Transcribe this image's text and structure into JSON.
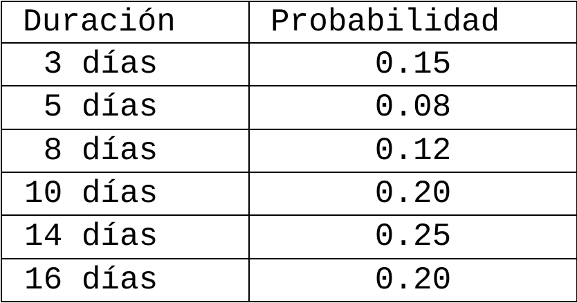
{
  "table": {
    "headers": [
      "Duración",
      "Probabilidad"
    ],
    "rows": [
      {
        "duracion": " 3 días",
        "probabilidad": "0.15"
      },
      {
        "duracion": " 5 días",
        "probabilidad": "0.08"
      },
      {
        "duracion": " 8 días",
        "probabilidad": "0.12"
      },
      {
        "duracion": "10 días",
        "probabilidad": "0.20"
      },
      {
        "duracion": "14 días",
        "probabilidad": "0.25"
      },
      {
        "duracion": "16 días",
        "probabilidad": "0.20"
      }
    ]
  },
  "chart_data": {
    "type": "table",
    "columns": [
      "Duración",
      "Probabilidad"
    ],
    "rows": [
      [
        "3 días",
        0.15
      ],
      [
        "5 días",
        0.08
      ],
      [
        "8 días",
        0.12
      ],
      [
        "10 días",
        0.2
      ],
      [
        "14 días",
        0.25
      ],
      [
        "16 días",
        0.2
      ]
    ]
  }
}
